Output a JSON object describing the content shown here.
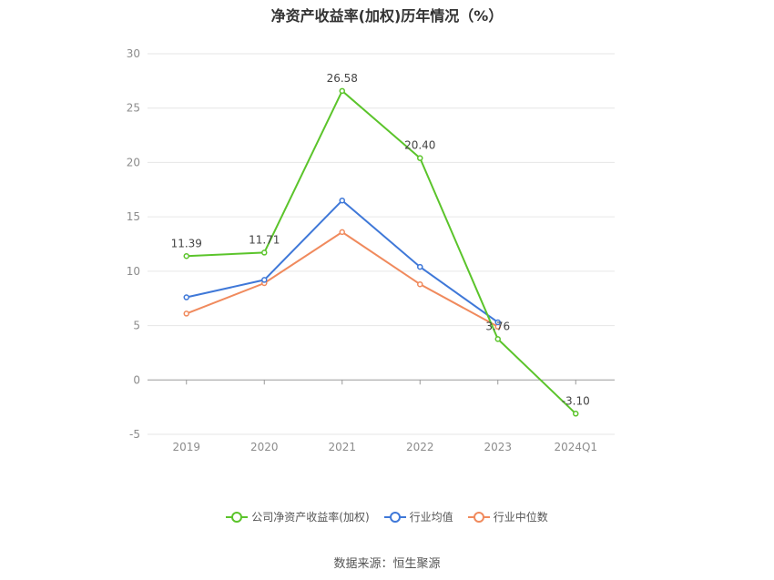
{
  "chart_data": {
    "type": "line",
    "title": "净资产收益率(加权)历年情况（%）",
    "categories": [
      "2019",
      "2020",
      "2021",
      "2022",
      "2023",
      "2024Q1"
    ],
    "ylim": [
      -5,
      30
    ],
    "yticks": [
      -5,
      0,
      5,
      10,
      15,
      20,
      25,
      30
    ],
    "grid": true,
    "legend_position": "bottom",
    "series": [
      {
        "name": "公司净资产收益率(加权)",
        "color": "#5bc42b",
        "values": [
          11.39,
          11.71,
          26.58,
          20.4,
          3.76,
          -3.1
        ],
        "labels": [
          "11.39",
          "11.71",
          "26.58",
          "20.40",
          "3.76",
          "-3.10"
        ]
      },
      {
        "name": "行业均值",
        "color": "#3f78d8",
        "values": [
          7.6,
          9.2,
          16.5,
          10.4,
          5.3,
          null
        ]
      },
      {
        "name": "行业中位数",
        "color": "#f08a5d",
        "values": [
          6.1,
          8.9,
          13.6,
          8.8,
          4.9,
          null
        ]
      }
    ],
    "source": "数据来源：恒生聚源"
  }
}
